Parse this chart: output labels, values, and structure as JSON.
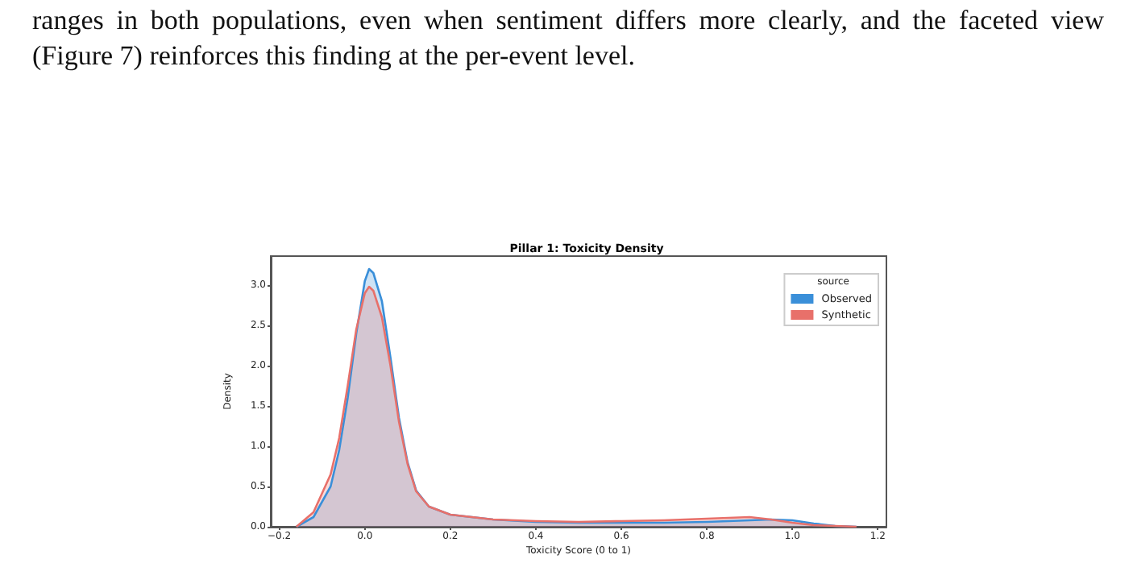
{
  "chart_data": {
    "type": "area",
    "title": "Pillar 1: Toxicity Density",
    "xlabel": "Toxicity Score (0 to 1)",
    "ylabel": "Density",
    "legend_title": "source",
    "legend": "top right",
    "grid": false,
    "marker": "none",
    "annotations": [
      "ranges in both populations, even when sentiment differs more clearly, and the faceted view (Figure 7) reinforces this finding at the per-event level."
    ],
    "xlim": [
      -0.22,
      1.22
    ],
    "xticks": [
      {
        "value": -0.2,
        "label": "−0.2"
      },
      {
        "value": 0,
        "label": "0.0"
      },
      0.2,
      0.4,
      0.6,
      0.8,
      {
        "value": 1,
        "label": "1.0"
      },
      1.2
    ],
    "ylim": [
      0,
      3.36
    ],
    "yticks": [
      {
        "value": 0,
        "label": "0.0"
      },
      0.5,
      {
        "value": 1,
        "label": "1.0"
      },
      1.5,
      {
        "value": 2,
        "label": "2.0"
      },
      2.5,
      {
        "value": 3,
        "label": "3.0"
      }
    ],
    "series": [
      {
        "name": "Observed",
        "color": "#3a8fd9",
        "x": [
          -0.16,
          -0.12,
          -0.08,
          -0.06,
          -0.04,
          -0.02,
          0,
          0.01,
          0.02,
          0.04,
          0.06,
          0.08,
          0.1,
          0.12,
          0.15,
          0.2,
          0.3,
          0.4,
          0.5,
          0.6,
          0.7,
          0.8,
          0.9,
          0.95,
          1.0,
          1.05,
          1.1,
          1.15
        ],
        "values": [
          0,
          0.12,
          0.5,
          0.95,
          1.6,
          2.4,
          3.05,
          3.2,
          3.15,
          2.8,
          2.1,
          1.35,
          0.8,
          0.45,
          0.25,
          0.15,
          0.09,
          0.06,
          0.05,
          0.05,
          0.05,
          0.06,
          0.08,
          0.09,
          0.08,
          0.04,
          0.01,
          0
        ]
      },
      {
        "name": "Synthetic",
        "color": "#e8706a",
        "x": [
          -0.16,
          -0.12,
          -0.08,
          -0.06,
          -0.04,
          -0.02,
          0,
          0.01,
          0.02,
          0.04,
          0.06,
          0.08,
          0.1,
          0.12,
          0.15,
          0.2,
          0.3,
          0.4,
          0.5,
          0.6,
          0.7,
          0.8,
          0.9,
          0.95,
          1.0,
          1.05,
          1.1,
          1.15
        ],
        "values": [
          0,
          0.18,
          0.65,
          1.1,
          1.75,
          2.45,
          2.9,
          2.98,
          2.93,
          2.6,
          2.0,
          1.3,
          0.78,
          0.44,
          0.25,
          0.15,
          0.09,
          0.07,
          0.06,
          0.07,
          0.08,
          0.1,
          0.12,
          0.09,
          0.05,
          0.02,
          0.01,
          0
        ]
      }
    ]
  }
}
